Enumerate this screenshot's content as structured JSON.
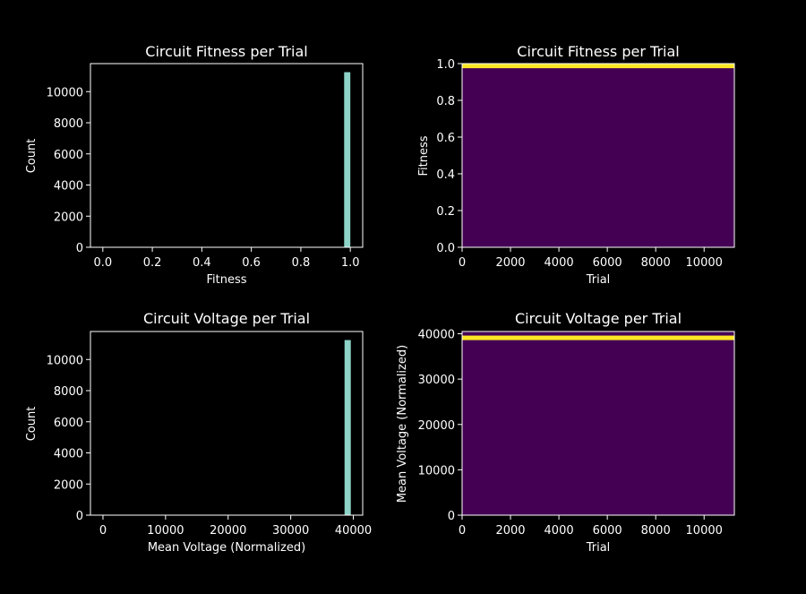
{
  "figure": {
    "background": "#000000",
    "text_color": "#ffffff"
  },
  "chart_data": [
    {
      "type": "bar",
      "subtype": "histogram",
      "title": "Circuit Fitness per Trial",
      "xlabel": "Fitness",
      "ylabel": "Count",
      "xlim": [
        -0.05,
        1.05
      ],
      "ylim": [
        0,
        11800
      ],
      "xticks": [
        0.0,
        0.2,
        0.4,
        0.6,
        0.8,
        1.0
      ],
      "xtick_labels": [
        "0.0",
        "0.2",
        "0.4",
        "0.6",
        "0.8",
        "1.0"
      ],
      "yticks": [
        0,
        2000,
        4000,
        6000,
        8000,
        10000
      ],
      "ytick_labels": [
        "0",
        "2000",
        "4000",
        "6000",
        "8000",
        "10000"
      ],
      "bars": [
        {
          "x0": 0.975,
          "x1": 1.0,
          "value": 11250
        }
      ],
      "color": "#8dd3c7"
    },
    {
      "type": "heatmap",
      "title": "Circuit Fitness per Trial",
      "xlabel": "Trial",
      "ylabel": "Fitness",
      "xlim": [
        0,
        11250
      ],
      "ylim": [
        0,
        1.0
      ],
      "xticks": [
        0,
        2000,
        4000,
        6000,
        8000,
        10000
      ],
      "xtick_labels": [
        "0",
        "2000",
        "4000",
        "6000",
        "8000",
        "10000"
      ],
      "yticks": [
        0,
        0.2,
        0.4,
        0.6,
        0.8,
        1.0
      ],
      "ytick_labels": [
        "0.0",
        "0.2",
        "0.4",
        "0.6",
        "0.8",
        "1.0"
      ],
      "background_color": "#440154",
      "bands": [
        {
          "y0": 0.975,
          "y1": 1.0,
          "color": "#fde725"
        }
      ]
    },
    {
      "type": "bar",
      "subtype": "histogram",
      "title": "Circuit Voltage per Trial",
      "xlabel": "Mean Voltage (Normalized)",
      "ylabel": "Count",
      "xlim": [
        -2000,
        41500
      ],
      "ylim": [
        0,
        11800
      ],
      "xticks": [
        0,
        10000,
        20000,
        30000,
        40000
      ],
      "xtick_labels": [
        "0",
        "10000",
        "20000",
        "30000",
        "40000"
      ],
      "yticks": [
        0,
        2000,
        4000,
        6000,
        8000,
        10000
      ],
      "ytick_labels": [
        "0",
        "2000",
        "4000",
        "6000",
        "8000",
        "10000"
      ],
      "bars": [
        {
          "x0": 38600,
          "x1": 39600,
          "value": 11250
        }
      ],
      "color": "#8dd3c7"
    },
    {
      "type": "heatmap",
      "title": "Circuit Voltage per Trial",
      "xlabel": "Trial",
      "ylabel": "Mean Voltage (Normalized)",
      "xlim": [
        0,
        11250
      ],
      "ylim": [
        0,
        40500
      ],
      "xticks": [
        0,
        2000,
        4000,
        6000,
        8000,
        10000
      ],
      "xtick_labels": [
        "0",
        "2000",
        "4000",
        "6000",
        "8000",
        "10000"
      ],
      "yticks": [
        0,
        10000,
        20000,
        30000,
        40000
      ],
      "ytick_labels": [
        "0",
        "10000",
        "20000",
        "30000",
        "40000"
      ],
      "background_color": "#440154",
      "bands": [
        {
          "y0": 38600,
          "y1": 39600,
          "color": "#fde725"
        }
      ]
    }
  ]
}
